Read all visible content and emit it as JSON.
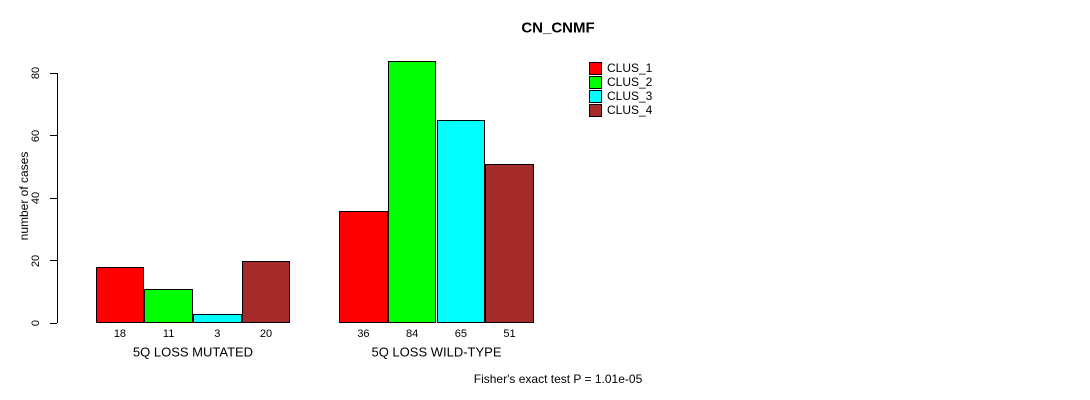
{
  "chart_data": {
    "type": "bar",
    "title": "CN_CNMF",
    "xlabel": "",
    "ylabel": "number of cases",
    "ylim": [
      0,
      84
    ],
    "yticks": [
      0,
      20,
      40,
      60,
      80
    ],
    "grid": false,
    "legend_position": "top-right",
    "categories": [
      "5Q LOSS MUTATED",
      "5Q LOSS WILD-TYPE"
    ],
    "series": [
      {
        "name": "CLUS_1",
        "color": "#ff0000",
        "values": [
          18,
          36
        ]
      },
      {
        "name": "CLUS_2",
        "color": "#00ff00",
        "values": [
          11,
          84
        ]
      },
      {
        "name": "CLUS_3",
        "color": "#00ffff",
        "values": [
          3,
          65
        ]
      },
      {
        "name": "CLUS_4",
        "color": "#a52a2a",
        "values": [
          20,
          51
        ]
      }
    ],
    "bar_value_labels": [
      [
        18,
        11,
        3,
        20
      ],
      [
        36,
        84,
        65,
        51
      ]
    ],
    "annotation": "Fisher's exact test P = 1.01e-05"
  }
}
